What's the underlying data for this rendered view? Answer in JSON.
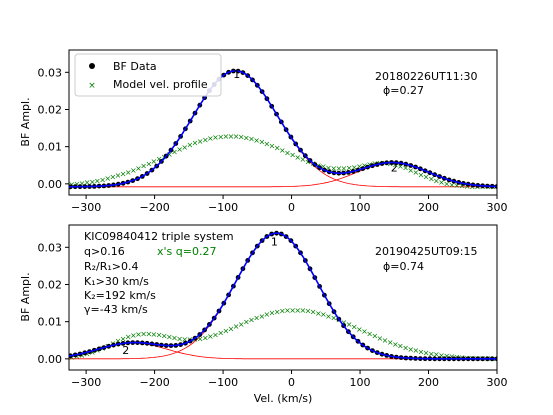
{
  "chart_data": [
    {
      "type": "line",
      "xlabel": "",
      "ylabel": "BF Ampl.",
      "xlim": [
        -325,
        300
      ],
      "ylim": [
        -0.003,
        0.036
      ],
      "xticks": [
        -300,
        -200,
        -100,
        0,
        100,
        200,
        300
      ],
      "yticks": [
        0.0,
        0.01,
        0.02,
        0.03
      ],
      "ytick_labels": [
        "0.00",
        "0.01",
        "0.02",
        "0.03"
      ],
      "legend": {
        "placement": "top-left",
        "entries": [
          {
            "label": "BF Data",
            "marker": "dot",
            "color": "#000000"
          },
          {
            "label": "Model vel. profile",
            "marker": "x",
            "color": "#008000"
          }
        ]
      },
      "annotations": {
        "date": "20180226UT11:30",
        "phase": "ϕ=0.27"
      },
      "component_labels": [
        {
          "text": "1",
          "x": -80,
          "y": 0.0285
        },
        {
          "text": "2",
          "x": 150,
          "y": 0.0033
        }
      ],
      "components": [
        {
          "amp": 0.0312,
          "center": -82,
          "sigma": 62,
          "color": "#ff0000"
        },
        {
          "amp": 0.0065,
          "center": 148,
          "sigma": 52,
          "color": "#ff0000"
        }
      ],
      "model_profile": {
        "amp": 0.0137,
        "center": -90,
        "sigma": 95,
        "floor": 0.0,
        "secondary_amp": 0.0057,
        "secondary_center": 140,
        "secondary_sigma": 45
      },
      "baseline": -0.0008,
      "fit_color": "#0000ff",
      "data_color": "#000000",
      "model_color": "#008000"
    },
    {
      "type": "line",
      "xlabel": "Vel. (km/s)",
      "ylabel": "BF Ampl.",
      "xlim": [
        -325,
        300
      ],
      "ylim": [
        -0.003,
        0.036
      ],
      "xticks": [
        -300,
        -200,
        -100,
        0,
        100,
        200,
        300
      ],
      "yticks": [
        0.0,
        0.01,
        0.02,
        0.03
      ],
      "ytick_labels": [
        "0.00",
        "0.01",
        "0.02",
        "0.03"
      ],
      "annotations": {
        "system": "KIC09840412  triple system",
        "q": "q>0.16",
        "q_model": "x's q=0.27",
        "radius_ratio": "R₂/R₁>0.4",
        "K1": "K₁>30 km/s",
        "K2": "K₂=192 km/s",
        "gamma": "γ=-43 km/s",
        "date": "20190425UT09:15",
        "phase": "ϕ=0.74"
      },
      "component_labels": [
        {
          "text": "1",
          "x": -25,
          "y": 0.0305
        },
        {
          "text": "2",
          "x": -242,
          "y": 0.0013
        }
      ],
      "components": [
        {
          "amp": 0.0338,
          "center": -22,
          "sigma": 60,
          "color": "#ff0000"
        },
        {
          "amp": 0.0043,
          "center": -232,
          "sigma": 50,
          "color": "#ff0000"
        }
      ],
      "model_profile": {
        "amp": 0.0132,
        "center": 5,
        "sigma": 95,
        "floor": 0.0,
        "secondary_amp": 0.006,
        "secondary_center": -220,
        "secondary_sigma": 45
      },
      "baseline": 0.0,
      "fit_color": "#0000ff",
      "data_color": "#000000",
      "model_color": "#008000"
    }
  ]
}
